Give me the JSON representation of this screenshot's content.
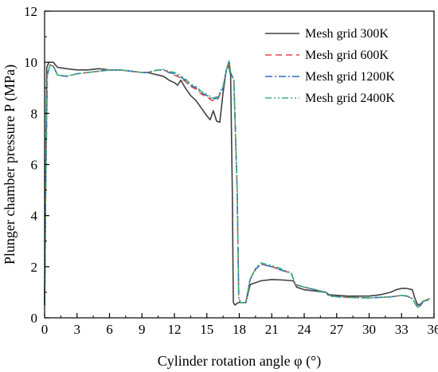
{
  "chart_data": {
    "type": "line",
    "title": "",
    "xlabel": "Cylinder rotation angle φ  (°)",
    "ylabel": "Plunger chamber pressure P  (MPa)",
    "xlim": [
      0,
      36
    ],
    "ylim": [
      0,
      12
    ],
    "xticks": [
      0,
      3,
      6,
      9,
      12,
      15,
      18,
      21,
      24,
      27,
      30,
      33,
      36
    ],
    "yticks": [
      0,
      2,
      4,
      6,
      8,
      10,
      12
    ],
    "grid": false,
    "legend_position": "top-right",
    "series": [
      {
        "name": "Mesh grid  300K",
        "color": "#404040",
        "dash": "solid",
        "points": [
          [
            0,
            0.5
          ],
          [
            0.1,
            5.5
          ],
          [
            0.2,
            9.8
          ],
          [
            0.4,
            10.0
          ],
          [
            0.8,
            10.0
          ],
          [
            1.2,
            9.8
          ],
          [
            2,
            9.75
          ],
          [
            3,
            9.7
          ],
          [
            4,
            9.7
          ],
          [
            5,
            9.75
          ],
          [
            6,
            9.7
          ],
          [
            7,
            9.7
          ],
          [
            8,
            9.65
          ],
          [
            9,
            9.6
          ],
          [
            9.5,
            9.6
          ],
          [
            10,
            9.55
          ],
          [
            10.5,
            9.5
          ],
          [
            11,
            9.45
          ],
          [
            11.5,
            9.3
          ],
          [
            12,
            9.2
          ],
          [
            12.3,
            9.1
          ],
          [
            12.6,
            9.3
          ],
          [
            13,
            9.0
          ],
          [
            13.5,
            8.7
          ],
          [
            14,
            8.5
          ],
          [
            14.5,
            8.2
          ],
          [
            15,
            7.9
          ],
          [
            15.3,
            7.75
          ],
          [
            15.6,
            8.1
          ],
          [
            15.9,
            7.7
          ],
          [
            16.2,
            7.65
          ],
          [
            16.5,
            8.8
          ],
          [
            16.8,
            9.7
          ],
          [
            17,
            9.9
          ],
          [
            17.2,
            9.5
          ],
          [
            17.35,
            5.0
          ],
          [
            17.45,
            0.6
          ],
          [
            17.6,
            0.5
          ],
          [
            17.9,
            0.6
          ],
          [
            18.6,
            0.6
          ],
          [
            19.0,
            1.3
          ],
          [
            20,
            1.45
          ],
          [
            21,
            1.5
          ],
          [
            22,
            1.48
          ],
          [
            23,
            1.45
          ],
          [
            23.3,
            1.2
          ],
          [
            24,
            1.1
          ],
          [
            25,
            1.05
          ],
          [
            26,
            1.0
          ],
          [
            26.3,
            0.9
          ],
          [
            28,
            0.85
          ],
          [
            30,
            0.85
          ],
          [
            31,
            0.9
          ],
          [
            32,
            1.0
          ],
          [
            32.5,
            1.1
          ],
          [
            33,
            1.15
          ],
          [
            33.5,
            1.15
          ],
          [
            34,
            1.1
          ],
          [
            34.2,
            0.8
          ],
          [
            34.5,
            0.5
          ],
          [
            34.8,
            0.55
          ],
          [
            35,
            0.65
          ],
          [
            35.5,
            0.7
          ]
        ]
      },
      {
        "name": "Mesh grid  600K",
        "color": "#e8474b",
        "dash": "dashed",
        "points": [
          [
            0,
            0.5
          ],
          [
            0.1,
            5.0
          ],
          [
            0.25,
            9.5
          ],
          [
            0.5,
            9.9
          ],
          [
            0.8,
            9.85
          ],
          [
            1.2,
            9.5
          ],
          [
            2,
            9.45
          ],
          [
            3,
            9.55
          ],
          [
            4,
            9.6
          ],
          [
            5,
            9.65
          ],
          [
            6,
            9.7
          ],
          [
            7,
            9.7
          ],
          [
            8,
            9.65
          ],
          [
            9,
            9.6
          ],
          [
            9.5,
            9.6
          ],
          [
            10,
            9.65
          ],
          [
            10.5,
            9.7
          ],
          [
            11,
            9.7
          ],
          [
            11.5,
            9.6
          ],
          [
            12,
            9.5
          ],
          [
            12.5,
            9.4
          ],
          [
            13,
            9.25
          ],
          [
            13.5,
            9.05
          ],
          [
            14,
            8.95
          ],
          [
            14.5,
            8.75
          ],
          [
            15,
            8.65
          ],
          [
            15.5,
            8.5
          ],
          [
            16,
            8.55
          ],
          [
            16.5,
            9.0
          ],
          [
            16.8,
            9.7
          ],
          [
            17.05,
            10.05
          ],
          [
            17.2,
            9.6
          ],
          [
            17.5,
            9.3
          ],
          [
            17.8,
            5.0
          ],
          [
            17.95,
            0.8
          ],
          [
            18.1,
            0.6
          ],
          [
            18.6,
            0.6
          ],
          [
            19.0,
            1.5
          ],
          [
            19.5,
            1.9
          ],
          [
            20,
            2.1
          ],
          [
            21,
            2.0
          ],
          [
            22,
            1.85
          ],
          [
            22.8,
            1.75
          ],
          [
            23.2,
            1.3
          ],
          [
            24,
            1.2
          ],
          [
            25,
            1.1
          ],
          [
            26,
            1.0
          ],
          [
            26.3,
            0.85
          ],
          [
            28,
            0.8
          ],
          [
            30,
            0.78
          ],
          [
            31,
            0.8
          ],
          [
            32,
            0.82
          ],
          [
            33,
            0.88
          ],
          [
            33.5,
            0.85
          ],
          [
            34,
            0.75
          ],
          [
            34.5,
            0.4
          ],
          [
            34.8,
            0.5
          ],
          [
            35,
            0.65
          ],
          [
            35.6,
            0.75
          ]
        ]
      },
      {
        "name": "Mesh grid  1200K",
        "color": "#2f6cc4",
        "dash": "dashdot",
        "points": [
          [
            0,
            0.5
          ],
          [
            0.1,
            5.0
          ],
          [
            0.25,
            9.5
          ],
          [
            0.5,
            9.9
          ],
          [
            0.8,
            9.85
          ],
          [
            1.2,
            9.5
          ],
          [
            2,
            9.45
          ],
          [
            3,
            9.55
          ],
          [
            4,
            9.6
          ],
          [
            5,
            9.65
          ],
          [
            6,
            9.7
          ],
          [
            7,
            9.7
          ],
          [
            8,
            9.65
          ],
          [
            9,
            9.6
          ],
          [
            9.5,
            9.6
          ],
          [
            10,
            9.65
          ],
          [
            10.5,
            9.7
          ],
          [
            11,
            9.7
          ],
          [
            11.5,
            9.6
          ],
          [
            12,
            9.55
          ],
          [
            12.5,
            9.45
          ],
          [
            13,
            9.3
          ],
          [
            13.5,
            9.1
          ],
          [
            14,
            9.0
          ],
          [
            14.5,
            8.8
          ],
          [
            15,
            8.7
          ],
          [
            15.5,
            8.55
          ],
          [
            16,
            8.6
          ],
          [
            16.5,
            9.0
          ],
          [
            16.8,
            9.7
          ],
          [
            17.05,
            10.05
          ],
          [
            17.2,
            9.6
          ],
          [
            17.5,
            9.3
          ],
          [
            17.8,
            5.0
          ],
          [
            17.95,
            0.8
          ],
          [
            18.1,
            0.6
          ],
          [
            18.6,
            0.6
          ],
          [
            19.0,
            1.5
          ],
          [
            19.5,
            1.9
          ],
          [
            20,
            2.1
          ],
          [
            21,
            2.0
          ],
          [
            22,
            1.85
          ],
          [
            22.8,
            1.75
          ],
          [
            23.2,
            1.3
          ],
          [
            24,
            1.2
          ],
          [
            25,
            1.1
          ],
          [
            26,
            1.0
          ],
          [
            26.3,
            0.85
          ],
          [
            28,
            0.8
          ],
          [
            30,
            0.78
          ],
          [
            31,
            0.8
          ],
          [
            32,
            0.82
          ],
          [
            33,
            0.88
          ],
          [
            33.5,
            0.85
          ],
          [
            34,
            0.75
          ],
          [
            34.5,
            0.4
          ],
          [
            34.8,
            0.5
          ],
          [
            35,
            0.65
          ],
          [
            35.6,
            0.75
          ]
        ]
      },
      {
        "name": "Mesh grid  2400K",
        "color": "#3cb371",
        "dash": "dashdotdot",
        "points": [
          [
            0,
            0.5
          ],
          [
            0.1,
            5.0
          ],
          [
            0.25,
            9.5
          ],
          [
            0.5,
            9.9
          ],
          [
            0.8,
            9.85
          ],
          [
            1.2,
            9.5
          ],
          [
            2,
            9.45
          ],
          [
            3,
            9.55
          ],
          [
            4,
            9.6
          ],
          [
            5,
            9.65
          ],
          [
            6,
            9.7
          ],
          [
            7,
            9.7
          ],
          [
            8,
            9.65
          ],
          [
            9,
            9.6
          ],
          [
            9.5,
            9.6
          ],
          [
            10,
            9.65
          ],
          [
            10.5,
            9.7
          ],
          [
            11,
            9.72
          ],
          [
            11.5,
            9.65
          ],
          [
            12,
            9.6
          ],
          [
            12.5,
            9.5
          ],
          [
            13,
            9.35
          ],
          [
            13.5,
            9.15
          ],
          [
            14,
            9.05
          ],
          [
            14.5,
            8.85
          ],
          [
            15,
            8.75
          ],
          [
            15.5,
            8.6
          ],
          [
            16,
            8.65
          ],
          [
            16.5,
            9.05
          ],
          [
            16.8,
            9.7
          ],
          [
            17.05,
            10.05
          ],
          [
            17.2,
            9.6
          ],
          [
            17.5,
            9.3
          ],
          [
            17.8,
            5.0
          ],
          [
            17.95,
            0.8
          ],
          [
            18.1,
            0.6
          ],
          [
            18.6,
            0.6
          ],
          [
            19.0,
            1.5
          ],
          [
            19.5,
            1.95
          ],
          [
            20,
            2.15
          ],
          [
            21,
            2.05
          ],
          [
            22,
            1.9
          ],
          [
            22.8,
            1.75
          ],
          [
            23.2,
            1.3
          ],
          [
            24,
            1.2
          ],
          [
            25,
            1.1
          ],
          [
            26,
            1.0
          ],
          [
            26.3,
            0.85
          ],
          [
            28,
            0.8
          ],
          [
            30,
            0.78
          ],
          [
            31,
            0.8
          ],
          [
            32,
            0.82
          ],
          [
            33,
            0.88
          ],
          [
            33.5,
            0.85
          ],
          [
            34,
            0.75
          ],
          [
            34.5,
            0.4
          ],
          [
            34.8,
            0.5
          ],
          [
            35,
            0.65
          ],
          [
            35.6,
            0.75
          ]
        ]
      }
    ]
  }
}
